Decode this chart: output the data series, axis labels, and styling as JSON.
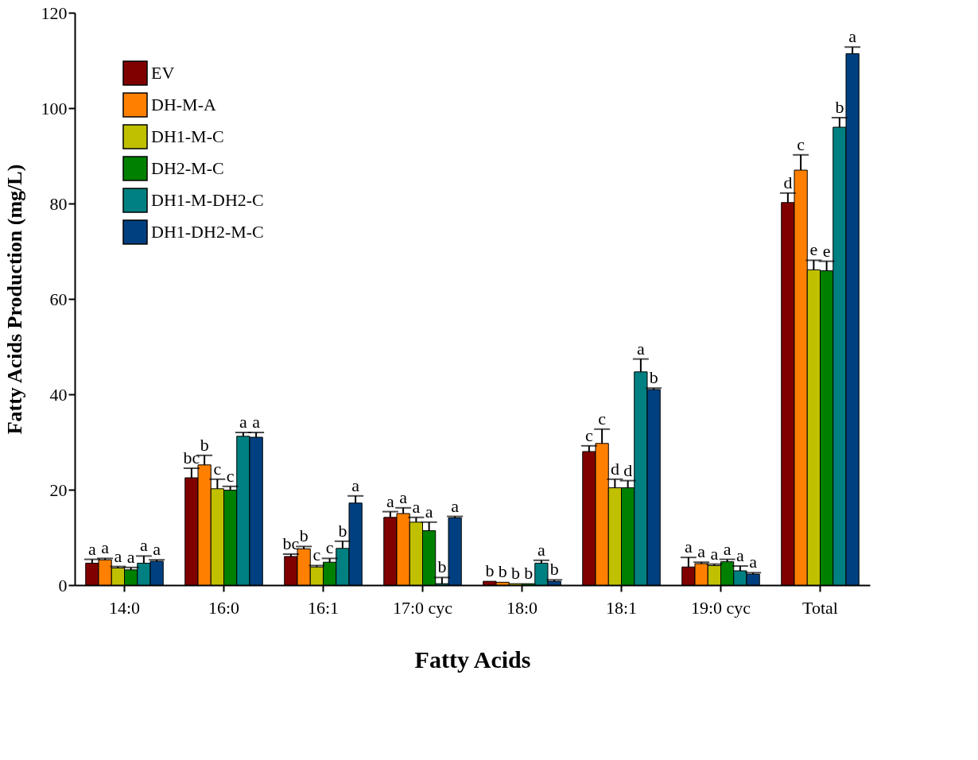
{
  "chart_data": {
    "type": "bar",
    "xlabel": "Fatty Acids",
    "ylabel": "Fatty Acids Production (mg/L)",
    "categories": [
      "14:0",
      "16:0",
      "16:1",
      "17:0 cyc",
      "18:0",
      "18:1",
      "19:0 cyc",
      "Total"
    ],
    "ylim": [
      0,
      120
    ],
    "yticks": [
      0,
      20,
      40,
      60,
      80,
      100,
      120
    ],
    "grid": false,
    "legend": "top left",
    "series": [
      {
        "name": "EV",
        "color": "#800000",
        "values": [
          4.6,
          22.5,
          6.0,
          14.2,
          0.8,
          28.0,
          3.8,
          80.2
        ],
        "errors": [
          0.8,
          2.0,
          0.5,
          1.2,
          null,
          1.2,
          2.0,
          2.0
        ],
        "value_labels": [
          "a",
          "bc",
          "bc",
          "a",
          "b",
          "c",
          "a",
          "d"
        ]
      },
      {
        "name": "DH-M-A",
        "color": "#ff8000",
        "values": [
          5.3,
          25.2,
          7.6,
          15.0,
          0.6,
          29.7,
          4.5,
          87.0
        ],
        "errors": [
          0.3,
          2.0,
          0.5,
          1.2,
          null,
          3.0,
          0.3,
          3.2
        ],
        "value_labels": [
          "a",
          "b",
          "b",
          "a",
          "b",
          "c",
          "a",
          "c"
        ]
      },
      {
        "name": "DH1-M-C",
        "color": "#c0c000",
        "values": [
          3.6,
          20.2,
          3.8,
          13.2,
          0.3,
          20.4,
          4.1,
          66.1
        ],
        "errors": [
          0.3,
          2.0,
          0.3,
          1.0,
          null,
          1.8,
          0.3,
          2.0
        ],
        "value_labels": [
          "a",
          "c",
          "c",
          "a",
          "b",
          "d",
          "a",
          "e"
        ]
      },
      {
        "name": "DH2-M-C",
        "color": "#008000",
        "values": [
          3.2,
          19.9,
          4.8,
          11.4,
          0.3,
          20.4,
          4.9,
          65.9
        ],
        "errors": [
          0.5,
          0.8,
          0.8,
          1.8,
          null,
          1.5,
          0.5,
          2.0
        ],
        "value_labels": [
          "a",
          "c",
          "c",
          "a",
          "b",
          "d",
          "a",
          "e"
        ]
      },
      {
        "name": "DH1-M-DH2-C",
        "color": "#008080",
        "values": [
          4.6,
          31.2,
          7.7,
          0.3,
          4.6,
          44.7,
          3.0,
          96.0
        ],
        "errors": [
          1.5,
          0.8,
          1.5,
          1.3,
          0.6,
          2.7,
          1.0,
          2.0
        ],
        "value_labels": [
          "a",
          "a",
          "b",
          "b",
          "a",
          "a",
          "a",
          "b"
        ]
      },
      {
        "name": "DH1-DH2-M-C",
        "color": "#004080",
        "values": [
          5.0,
          31.0,
          17.2,
          14.1,
          0.8,
          41.0,
          2.3,
          111.4
        ],
        "errors": [
          0.3,
          1.0,
          1.5,
          0.3,
          0.3,
          0.3,
          0.3,
          1.4
        ],
        "value_labels": [
          "a",
          "a",
          "a",
          "a",
          "b",
          "b",
          "a",
          "a"
        ]
      }
    ]
  }
}
